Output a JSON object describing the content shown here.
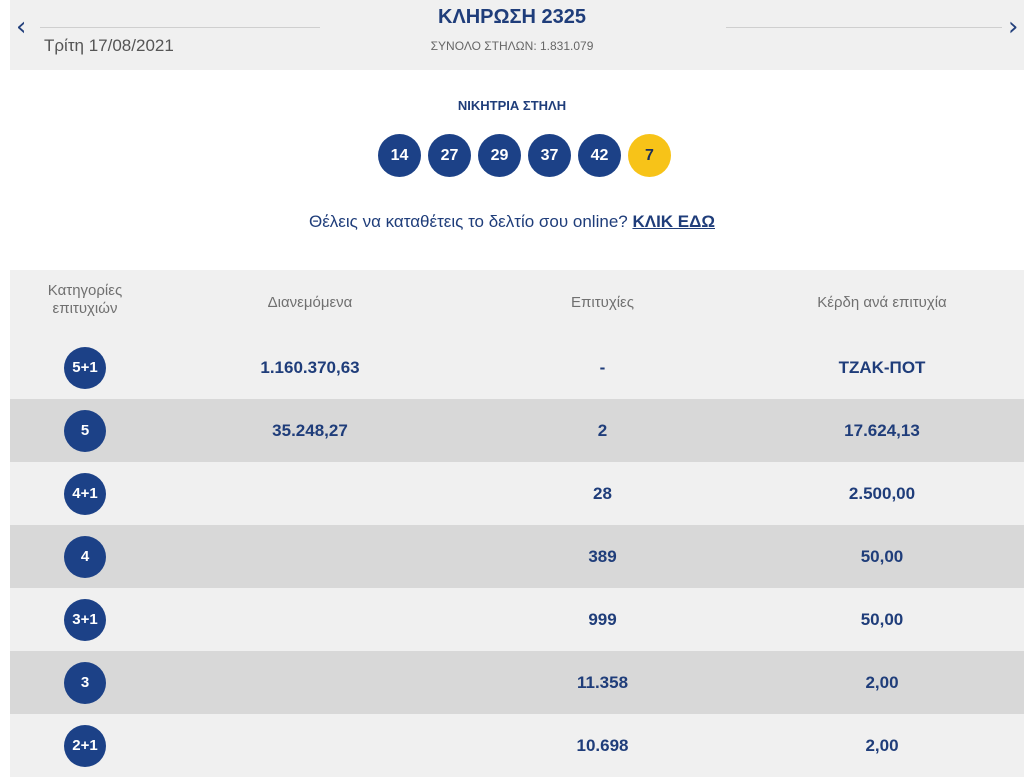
{
  "header": {
    "prev_arrow": "‹",
    "next_arrow": "›",
    "date": "Τρίτη 17/08/2021",
    "draw_title": "ΚΛΗΡΩΣΗ 2325",
    "total_columns": "ΣΥΝΟΛΟ ΣΤΗΛΩΝ: 1.831.079"
  },
  "winning": {
    "label": "ΝΙΚΗΤΡΙΑ ΣΤΗΛΗ",
    "numbers": [
      "14",
      "27",
      "29",
      "37",
      "42"
    ],
    "joker": "7"
  },
  "promo": {
    "text": "Θέλεις να καταθέτεις το δελτίο σου online?",
    "link": "ΚΛΙΚ ΕΔΩ"
  },
  "table": {
    "headers": {
      "category_line1": "Κατηγορίες",
      "category_line2": "επιτυχιών",
      "distributed": "Διανεμόμενα",
      "winners": "Επιτυχίες",
      "prize": "Κέρδη ανά επιτυχία"
    },
    "rows": [
      {
        "category": "5+1",
        "distributed": "1.160.370,63",
        "winners": "-",
        "prize": "ΤΖΑΚ-ΠΟΤ"
      },
      {
        "category": "5",
        "distributed": "35.248,27",
        "winners": "2",
        "prize": "17.624,13"
      },
      {
        "category": "4+1",
        "distributed": "",
        "winners": "28",
        "prize": "2.500,00"
      },
      {
        "category": "4",
        "distributed": "",
        "winners": "389",
        "prize": "50,00"
      },
      {
        "category": "3+1",
        "distributed": "",
        "winners": "999",
        "prize": "50,00"
      },
      {
        "category": "3",
        "distributed": "",
        "winners": "11.358",
        "prize": "2,00"
      },
      {
        "category": "2+1",
        "distributed": "",
        "winners": "10.698",
        "prize": "2,00"
      }
    ]
  },
  "colors": {
    "primary_blue": "#1c4187",
    "joker_yellow": "#f7c318",
    "row_light": "#f0f0f0",
    "row_dark": "#d8d8d8"
  }
}
